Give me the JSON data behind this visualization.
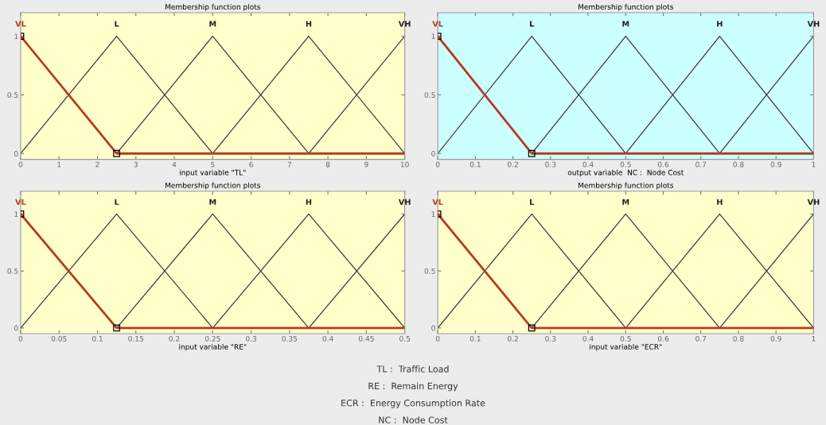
{
  "chart_data": [
    {
      "type": "line",
      "title": "Membership function plots",
      "xlabel": "input variable \"TL\"",
      "xlim": [
        0,
        10
      ],
      "xticks": [
        0,
        1,
        2,
        3,
        4,
        5,
        6,
        7,
        8,
        9,
        10
      ],
      "ylim": [
        -0.05,
        1.2
      ],
      "yticks": [
        0,
        0.5,
        1
      ],
      "grid": false,
      "legend": false,
      "series": [
        {
          "name": "VL",
          "color": "#b83a1e",
          "x": [
            0,
            2.5,
            10
          ],
          "values": [
            1,
            0,
            0
          ]
        },
        {
          "name": "L",
          "color": "#3a3a3a",
          "x": [
            0,
            2.5,
            5
          ],
          "values": [
            0,
            1,
            0
          ]
        },
        {
          "name": "M",
          "color": "#3a3a3a",
          "x": [
            2.5,
            5,
            7.5
          ],
          "values": [
            0,
            1,
            0
          ]
        },
        {
          "name": "H",
          "color": "#3a3a3a",
          "x": [
            5,
            7.5,
            10
          ],
          "values": [
            0,
            1,
            0
          ]
        },
        {
          "name": "VH",
          "color": "#3a3a3a",
          "x": [
            7.5,
            10
          ],
          "values": [
            0,
            1
          ]
        },
        {
          "type": "scatter",
          "marker": "square",
          "color": "#000000",
          "x": [
            0,
            2.5
          ],
          "values": [
            1,
            0
          ]
        }
      ]
    },
    {
      "type": "line",
      "title": "Membership function plots",
      "xlabel": "output variable  NC :  Node Cost",
      "xlim": [
        0,
        1
      ],
      "xticks": [
        0,
        0.1,
        0.2,
        0.3,
        0.4,
        0.5,
        0.6,
        0.7,
        0.8,
        0.9,
        1
      ],
      "ylim": [
        -0.05,
        1.2
      ],
      "yticks": [
        0,
        0.5,
        1
      ],
      "grid": false,
      "legend": false,
      "series": [
        {
          "name": "VL",
          "color": "#b83a1e",
          "x": [
            0,
            0.25,
            1
          ],
          "values": [
            1,
            0,
            0
          ]
        },
        {
          "name": "L",
          "color": "#3a3a3a",
          "x": [
            0,
            0.25,
            0.5
          ],
          "values": [
            0,
            1,
            0
          ]
        },
        {
          "name": "M",
          "color": "#3a3a3a",
          "x": [
            0.25,
            0.5,
            0.75
          ],
          "values": [
            0,
            1,
            0
          ]
        },
        {
          "name": "H",
          "color": "#3a3a3a",
          "x": [
            0.5,
            0.75,
            1
          ],
          "values": [
            0,
            1,
            0
          ]
        },
        {
          "name": "VH",
          "color": "#3a3a3a",
          "x": [
            0.75,
            1
          ],
          "values": [
            0,
            1
          ]
        },
        {
          "type": "scatter",
          "marker": "square",
          "color": "#000000",
          "x": [
            0,
            0.25
          ],
          "values": [
            1,
            0
          ]
        }
      ]
    },
    {
      "type": "line",
      "title": "Membership function plots",
      "xlabel": "input variable \"RE\"",
      "xlim": [
        0,
        0.5
      ],
      "xticks": [
        0,
        0.05,
        0.1,
        0.15,
        0.2,
        0.25,
        0.3,
        0.35,
        0.4,
        0.45,
        0.5
      ],
      "ylim": [
        -0.05,
        1.2
      ],
      "yticks": [
        0,
        0.5,
        1
      ],
      "grid": false,
      "legend": false,
      "series": [
        {
          "name": "VL",
          "color": "#b83a1e",
          "x": [
            0,
            0.125,
            0.5
          ],
          "values": [
            1,
            0,
            0
          ]
        },
        {
          "name": "L",
          "color": "#3a3a3a",
          "x": [
            0,
            0.125,
            0.25
          ],
          "values": [
            0,
            1,
            0
          ]
        },
        {
          "name": "M",
          "color": "#3a3a3a",
          "x": [
            0.125,
            0.25,
            0.375
          ],
          "values": [
            0,
            1,
            0
          ]
        },
        {
          "name": "H",
          "color": "#3a3a3a",
          "x": [
            0.25,
            0.375,
            0.5
          ],
          "values": [
            0,
            1,
            0
          ]
        },
        {
          "name": "VH",
          "color": "#3a3a3a",
          "x": [
            0.375,
            0.5
          ],
          "values": [
            0,
            1
          ]
        },
        {
          "type": "scatter",
          "marker": "square",
          "color": "#000000",
          "x": [
            0,
            0.125
          ],
          "values": [
            1,
            0
          ]
        }
      ]
    },
    {
      "type": "line",
      "title": "Membership function plots",
      "xlabel": "input variable \"ECR\"",
      "xlim": [
        0,
        1
      ],
      "xticks": [
        0,
        0.1,
        0.2,
        0.3,
        0.4,
        0.5,
        0.6,
        0.7,
        0.8,
        0.9,
        1
      ],
      "ylim": [
        -0.05,
        1.2
      ],
      "yticks": [
        0,
        0.5,
        1
      ],
      "grid": false,
      "legend": false,
      "annotations": [
        "TL :  Traffic Load",
        "RE :  Remain Energy",
        "ECR :  Energy Consumption Rate",
        "NC :  Node Cost"
      ],
      "series": [
        {
          "name": "VL",
          "color": "#b83a1e",
          "x": [
            0,
            0.25,
            1
          ],
          "values": [
            1,
            0,
            0
          ]
        },
        {
          "name": "L",
          "color": "#3a3a3a",
          "x": [
            0,
            0.25,
            0.5
          ],
          "values": [
            0,
            1,
            0
          ]
        },
        {
          "name": "M",
          "color": "#3a3a3a",
          "x": [
            0.25,
            0.5,
            0.75
          ],
          "values": [
            0,
            1,
            0
          ]
        },
        {
          "name": "H",
          "color": "#3a3a3a",
          "x": [
            0.5,
            0.75,
            1
          ],
          "values": [
            0,
            1,
            0
          ]
        },
        {
          "name": "VH",
          "color": "#3a3a3a",
          "x": [
            0.75,
            1
          ],
          "values": [
            0,
            1
          ]
        },
        {
          "type": "scatter",
          "marker": "square",
          "color": "#000000",
          "x": [
            0,
            0.25
          ],
          "values": [
            1,
            0
          ]
        }
      ]
    }
  ]
}
